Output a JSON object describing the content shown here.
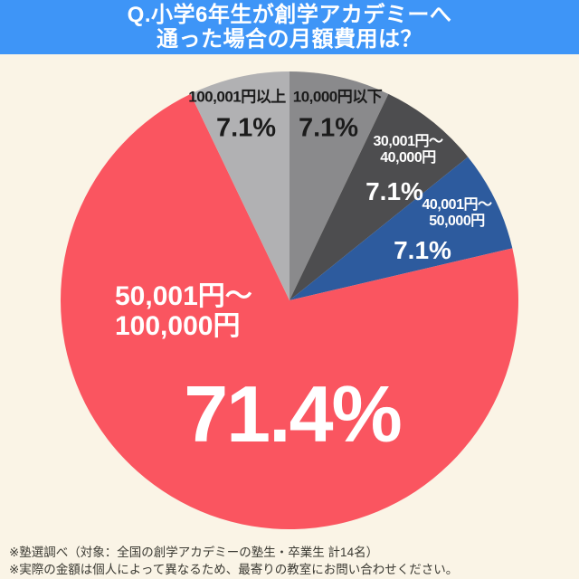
{
  "page": {
    "background": "#faf4e6"
  },
  "header": {
    "title": "Q.小学6年生が創学アカデミーへ\n通った場合の月額費用は？",
    "background": "#3e95f7",
    "text_color": "#ffffff"
  },
  "chart_data": {
    "type": "pie",
    "title": "Q.小学6年生が創学アカデミーへ通った場合の月額費用は？",
    "unit": "%",
    "start_angle_deg": -90,
    "direction": "clockwise",
    "legend_position": "on-slices",
    "segments": [
      {
        "label": "10,000円以下",
        "label_display": "10,000円以下",
        "value": 7.1,
        "pct_label": "7.1%",
        "color": "#8a8a8c",
        "label_color": "#1b1b1b"
      },
      {
        "label": "30,001円〜40,000円",
        "label_display": "30,001円〜\n40,000円",
        "value": 7.1,
        "pct_label": "7.1%",
        "color": "#4d4d4f",
        "label_color": "#ffffff"
      },
      {
        "label": "40,001円〜50,000円",
        "label_display": "40,001円〜\n50,000円",
        "value": 7.1,
        "pct_label": "7.1%",
        "color": "#2d5b9e",
        "label_color": "#ffffff"
      },
      {
        "label": "50,001円〜100,000円",
        "label_display": "50,001円〜\n100,000円",
        "value": 71.4,
        "pct_label": "71.4%",
        "color": "#fa5560",
        "label_color": "#ffffff"
      },
      {
        "label": "100,001円以上",
        "label_display": "100,001円以上",
        "value": 7.1,
        "pct_label": "7.1%",
        "color": "#b1b1b3",
        "label_color": "#1b1b1b"
      }
    ]
  },
  "footer": {
    "note1": "※塾選調べ（対象：全国の創学アカデミーの塾生・卒業生 計14名）",
    "note2": "※実際の金額は個人によって異なるため、最寄りの教室にお問い合わせください。"
  }
}
